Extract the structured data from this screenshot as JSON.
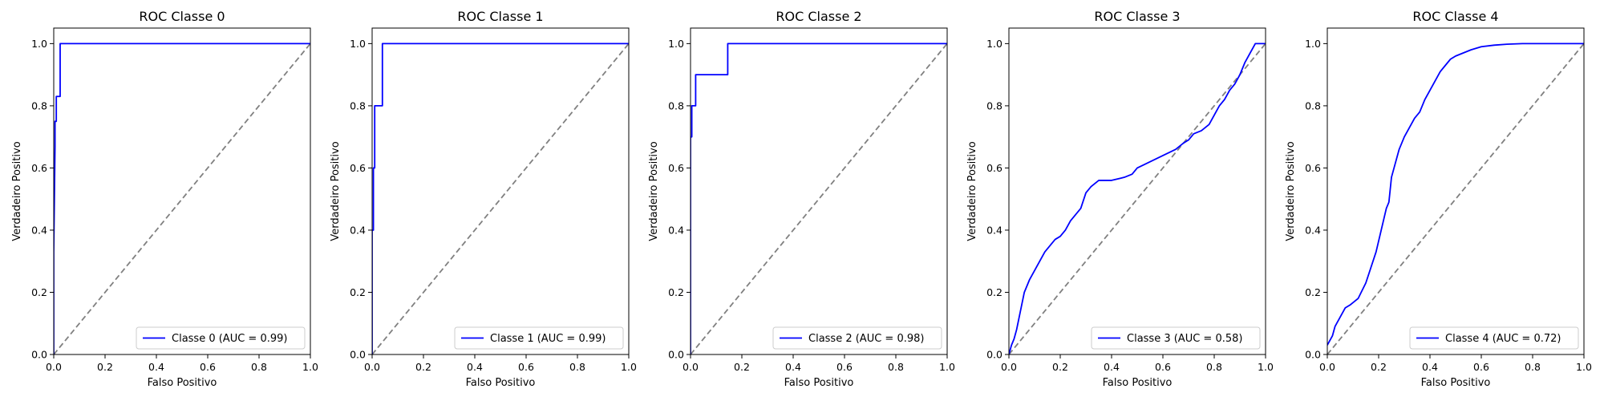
{
  "chart_data": [
    {
      "type": "line",
      "title": "ROC Classe 0",
      "xlabel": "Falso Positivo",
      "ylabel": "Verdadeiro Positivo",
      "xlim": [
        0,
        1
      ],
      "ylim": [
        0,
        1.05
      ],
      "xticks": [
        "0.0",
        "0.2",
        "0.4",
        "0.6",
        "0.8",
        "1.0"
      ],
      "yticks": [
        "0.0",
        "0.2",
        "0.4",
        "0.6",
        "0.8",
        "1.0"
      ],
      "legend_position": "lower-right",
      "series": [
        {
          "name": "Classe 0 (AUC = 0.99)",
          "color": "#0000ff",
          "x": [
            0,
            0,
            0.005,
            0.005,
            0.01,
            0.01,
            0.025,
            0.025,
            1
          ],
          "y": [
            0,
            0.33,
            0.67,
            0.75,
            0.75,
            0.83,
            0.83,
            1.0,
            1.0
          ]
        }
      ],
      "reference_line": {
        "x": [
          0,
          1
        ],
        "y": [
          0,
          1
        ],
        "color": "#808080",
        "style": "dashed"
      }
    },
    {
      "type": "line",
      "title": "ROC Classe 1",
      "xlabel": "Falso Positivo",
      "ylabel": "Verdadeiro Positivo",
      "xlim": [
        0,
        1
      ],
      "ylim": [
        0,
        1.05
      ],
      "xticks": [
        "0.0",
        "0.2",
        "0.4",
        "0.6",
        "0.8",
        "1.0"
      ],
      "yticks": [
        "0.0",
        "0.2",
        "0.4",
        "0.6",
        "0.8",
        "1.0"
      ],
      "legend_position": "lower-right",
      "series": [
        {
          "name": "Classe 1 (AUC = 0.99)",
          "color": "#0000ff",
          "x": [
            0,
            0,
            0.005,
            0.005,
            0.01,
            0.01,
            0.04,
            0.04,
            1
          ],
          "y": [
            0,
            0.4,
            0.4,
            0.6,
            0.6,
            0.8,
            0.8,
            1.0,
            1.0
          ]
        }
      ],
      "reference_line": {
        "x": [
          0,
          1
        ],
        "y": [
          0,
          1
        ],
        "color": "#808080",
        "style": "dashed"
      }
    },
    {
      "type": "line",
      "title": "ROC Classe 2",
      "xlabel": "Falso Positivo",
      "ylabel": "Verdadeiro Positivo",
      "xlim": [
        0,
        1
      ],
      "ylim": [
        0,
        1.05
      ],
      "xticks": [
        "0.0",
        "0.2",
        "0.4",
        "0.6",
        "0.8",
        "1.0"
      ],
      "yticks": [
        "0.0",
        "0.2",
        "0.4",
        "0.6",
        "0.8",
        "1.0"
      ],
      "legend_position": "lower-right",
      "series": [
        {
          "name": "Classe 2 (AUC = 0.98)",
          "color": "#0000ff",
          "x": [
            0,
            0,
            0.005,
            0.005,
            0.02,
            0.02,
            0.145,
            0.145,
            1
          ],
          "y": [
            0,
            0.7,
            0.7,
            0.8,
            0.8,
            0.9,
            0.9,
            1.0,
            1.0
          ]
        }
      ],
      "reference_line": {
        "x": [
          0,
          1
        ],
        "y": [
          0,
          1
        ],
        "color": "#808080",
        "style": "dashed"
      }
    },
    {
      "type": "line",
      "title": "ROC Classe 3",
      "xlabel": "Falso Positivo",
      "ylabel": "Verdadeiro Positivo",
      "xlim": [
        0,
        1
      ],
      "ylim": [
        0,
        1.05
      ],
      "xticks": [
        "0.0",
        "0.2",
        "0.4",
        "0.6",
        "0.8",
        "1.0"
      ],
      "yticks": [
        "0.0",
        "0.2",
        "0.4",
        "0.6",
        "0.8",
        "1.0"
      ],
      "legend_position": "lower-right",
      "series": [
        {
          "name": "Classe 3 (AUC = 0.58)",
          "color": "#0000ff",
          "x": [
            0,
            0.01,
            0.02,
            0.03,
            0.04,
            0.05,
            0.06,
            0.07,
            0.08,
            0.1,
            0.12,
            0.14,
            0.16,
            0.18,
            0.2,
            0.22,
            0.24,
            0.26,
            0.28,
            0.3,
            0.32,
            0.35,
            0.4,
            0.45,
            0.48,
            0.5,
            0.55,
            0.6,
            0.65,
            0.68,
            0.7,
            0.72,
            0.75,
            0.78,
            0.8,
            0.82,
            0.84,
            0.86,
            0.88,
            0.9,
            0.92,
            0.94,
            0.96,
            1.0
          ],
          "y": [
            0,
            0.03,
            0.05,
            0.08,
            0.12,
            0.16,
            0.2,
            0.22,
            0.24,
            0.27,
            0.3,
            0.33,
            0.35,
            0.37,
            0.38,
            0.4,
            0.43,
            0.45,
            0.47,
            0.52,
            0.54,
            0.56,
            0.56,
            0.57,
            0.58,
            0.6,
            0.62,
            0.64,
            0.66,
            0.68,
            0.69,
            0.71,
            0.72,
            0.74,
            0.77,
            0.8,
            0.82,
            0.85,
            0.87,
            0.9,
            0.94,
            0.97,
            1.0,
            1.0
          ]
        }
      ],
      "reference_line": {
        "x": [
          0,
          1
        ],
        "y": [
          0,
          1
        ],
        "color": "#808080",
        "style": "dashed"
      }
    },
    {
      "type": "line",
      "title": "ROC Classe 4",
      "xlabel": "Falso Positivo",
      "ylabel": "Verdadeiro Positivo",
      "xlim": [
        0,
        1
      ],
      "ylim": [
        0,
        1.05
      ],
      "xticks": [
        "0.0",
        "0.2",
        "0.4",
        "0.6",
        "0.8",
        "1.0"
      ],
      "yticks": [
        "0.0",
        "0.2",
        "0.4",
        "0.6",
        "0.8",
        "1.0"
      ],
      "legend_position": "lower-right",
      "series": [
        {
          "name": "Classe 4 (AUC = 0.72)",
          "color": "#0000ff",
          "x": [
            0,
            0.02,
            0.03,
            0.05,
            0.07,
            0.09,
            0.12,
            0.15,
            0.17,
            0.19,
            0.21,
            0.23,
            0.24,
            0.25,
            0.27,
            0.28,
            0.3,
            0.32,
            0.34,
            0.36,
            0.38,
            0.4,
            0.42,
            0.44,
            0.46,
            0.48,
            0.5,
            0.53,
            0.56,
            0.6,
            0.65,
            0.7,
            0.76,
            0.85,
            1.0
          ],
          "y": [
            0.03,
            0.06,
            0.09,
            0.12,
            0.15,
            0.16,
            0.18,
            0.23,
            0.28,
            0.33,
            0.4,
            0.47,
            0.49,
            0.57,
            0.63,
            0.66,
            0.7,
            0.73,
            0.76,
            0.78,
            0.82,
            0.85,
            0.88,
            0.91,
            0.93,
            0.95,
            0.96,
            0.97,
            0.98,
            0.99,
            0.995,
            0.998,
            1.0,
            1.0,
            1.0
          ]
        }
      ],
      "reference_line": {
        "x": [
          0,
          1
        ],
        "y": [
          0,
          1
        ],
        "color": "#808080",
        "style": "dashed"
      }
    }
  ]
}
